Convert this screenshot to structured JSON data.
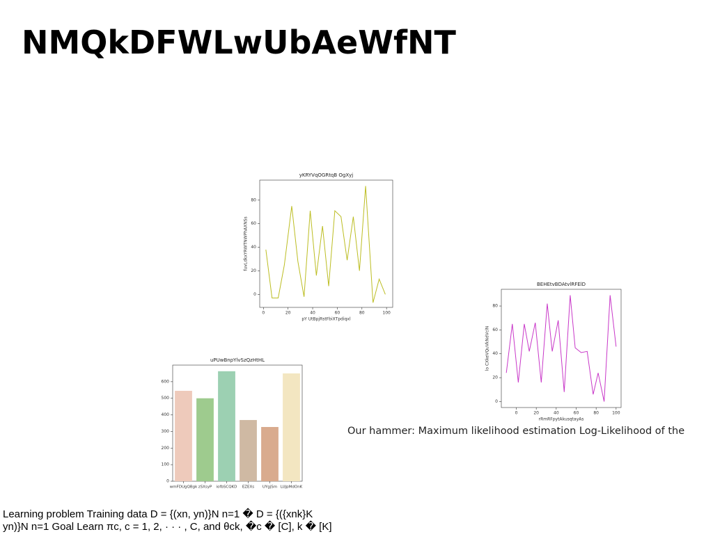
{
  "title": "NMQkDFWLwUbAeWfNT",
  "caption": "Our hammer: Maximum likelihood estimation Log-Likelihood of the",
  "learning_text": [
    "Learning problem Training data D = {(xn, yn)}N n=1 � D = {({xnk}K",
    "yn)}N n=1 Goal Learn πc, c = 1, 2, · · · , C, and θck, �c � [C], k � [K]"
  ],
  "chart_data": [
    {
      "type": "line",
      "title": "yKRYVqOGRtqB OgXyj",
      "x_label": "pY UtBpjRstFbiXTpdiqxl",
      "y_label": "fuvLdkxYRWTNWPhAXNSs",
      "x": [
        2,
        7,
        12,
        17,
        23,
        28,
        33,
        38,
        43,
        48,
        53,
        58,
        63,
        68,
        73,
        78,
        83,
        89,
        94,
        99
      ],
      "series": [
        {
          "color": "#bcbd22",
          "values": [
            38,
            -3,
            -3,
            25,
            75,
            28,
            -2,
            71,
            16,
            58,
            7,
            71,
            66,
            29,
            66,
            20,
            92,
            -7,
            13,
            0
          ]
        }
      ],
      "xlim": [
        -3,
        105
      ],
      "ylim": [
        -11,
        97
      ],
      "xticks": [
        0,
        20,
        40,
        60,
        80,
        100
      ],
      "yticks": [
        0,
        20,
        40,
        60,
        80
      ]
    },
    {
      "type": "line",
      "title": "BEHEtvBDAtvlRFElD",
      "x_label": "rRmRFpytAkusqtayAs",
      "y_label": "lo CXkeVQuVkNdVclN",
      "x": [
        -10,
        -4,
        2,
        8,
        13,
        19,
        25,
        31,
        36,
        42,
        48,
        54,
        59,
        65,
        71,
        77,
        82,
        88,
        94,
        100
      ],
      "series": [
        {
          "color": "#c837c8",
          "values": [
            24,
            65,
            16,
            65,
            42,
            66,
            16,
            82,
            42,
            68,
            8,
            89,
            45,
            41,
            42,
            6,
            24,
            0,
            89,
            46
          ]
        }
      ],
      "xlim": [
        -15,
        105
      ],
      "ylim": [
        -5,
        94
      ],
      "xticks": [
        0,
        20,
        40,
        60,
        80,
        100
      ],
      "yticks": [
        0,
        20,
        40,
        60,
        80
      ]
    },
    {
      "type": "bar",
      "title": "uPUwBnpYlvSzQzHtHL",
      "categories": [
        "wmFDUgQBgk",
        "zSXsyP",
        "iofbSCQKD",
        "EZEXs",
        "UYgjSm",
        "LUJpMdOnK"
      ],
      "values": [
        545,
        500,
        663,
        369,
        327,
        650
      ],
      "colors": [
        "#eecabb",
        "#9ecb8e",
        "#9cd0b2",
        "#cfb9a3",
        "#d9ab8e",
        "#f3e6c1"
      ],
      "ylim": [
        0,
        700
      ],
      "yticks": [
        0,
        100,
        200,
        300,
        400,
        500,
        600
      ]
    }
  ]
}
